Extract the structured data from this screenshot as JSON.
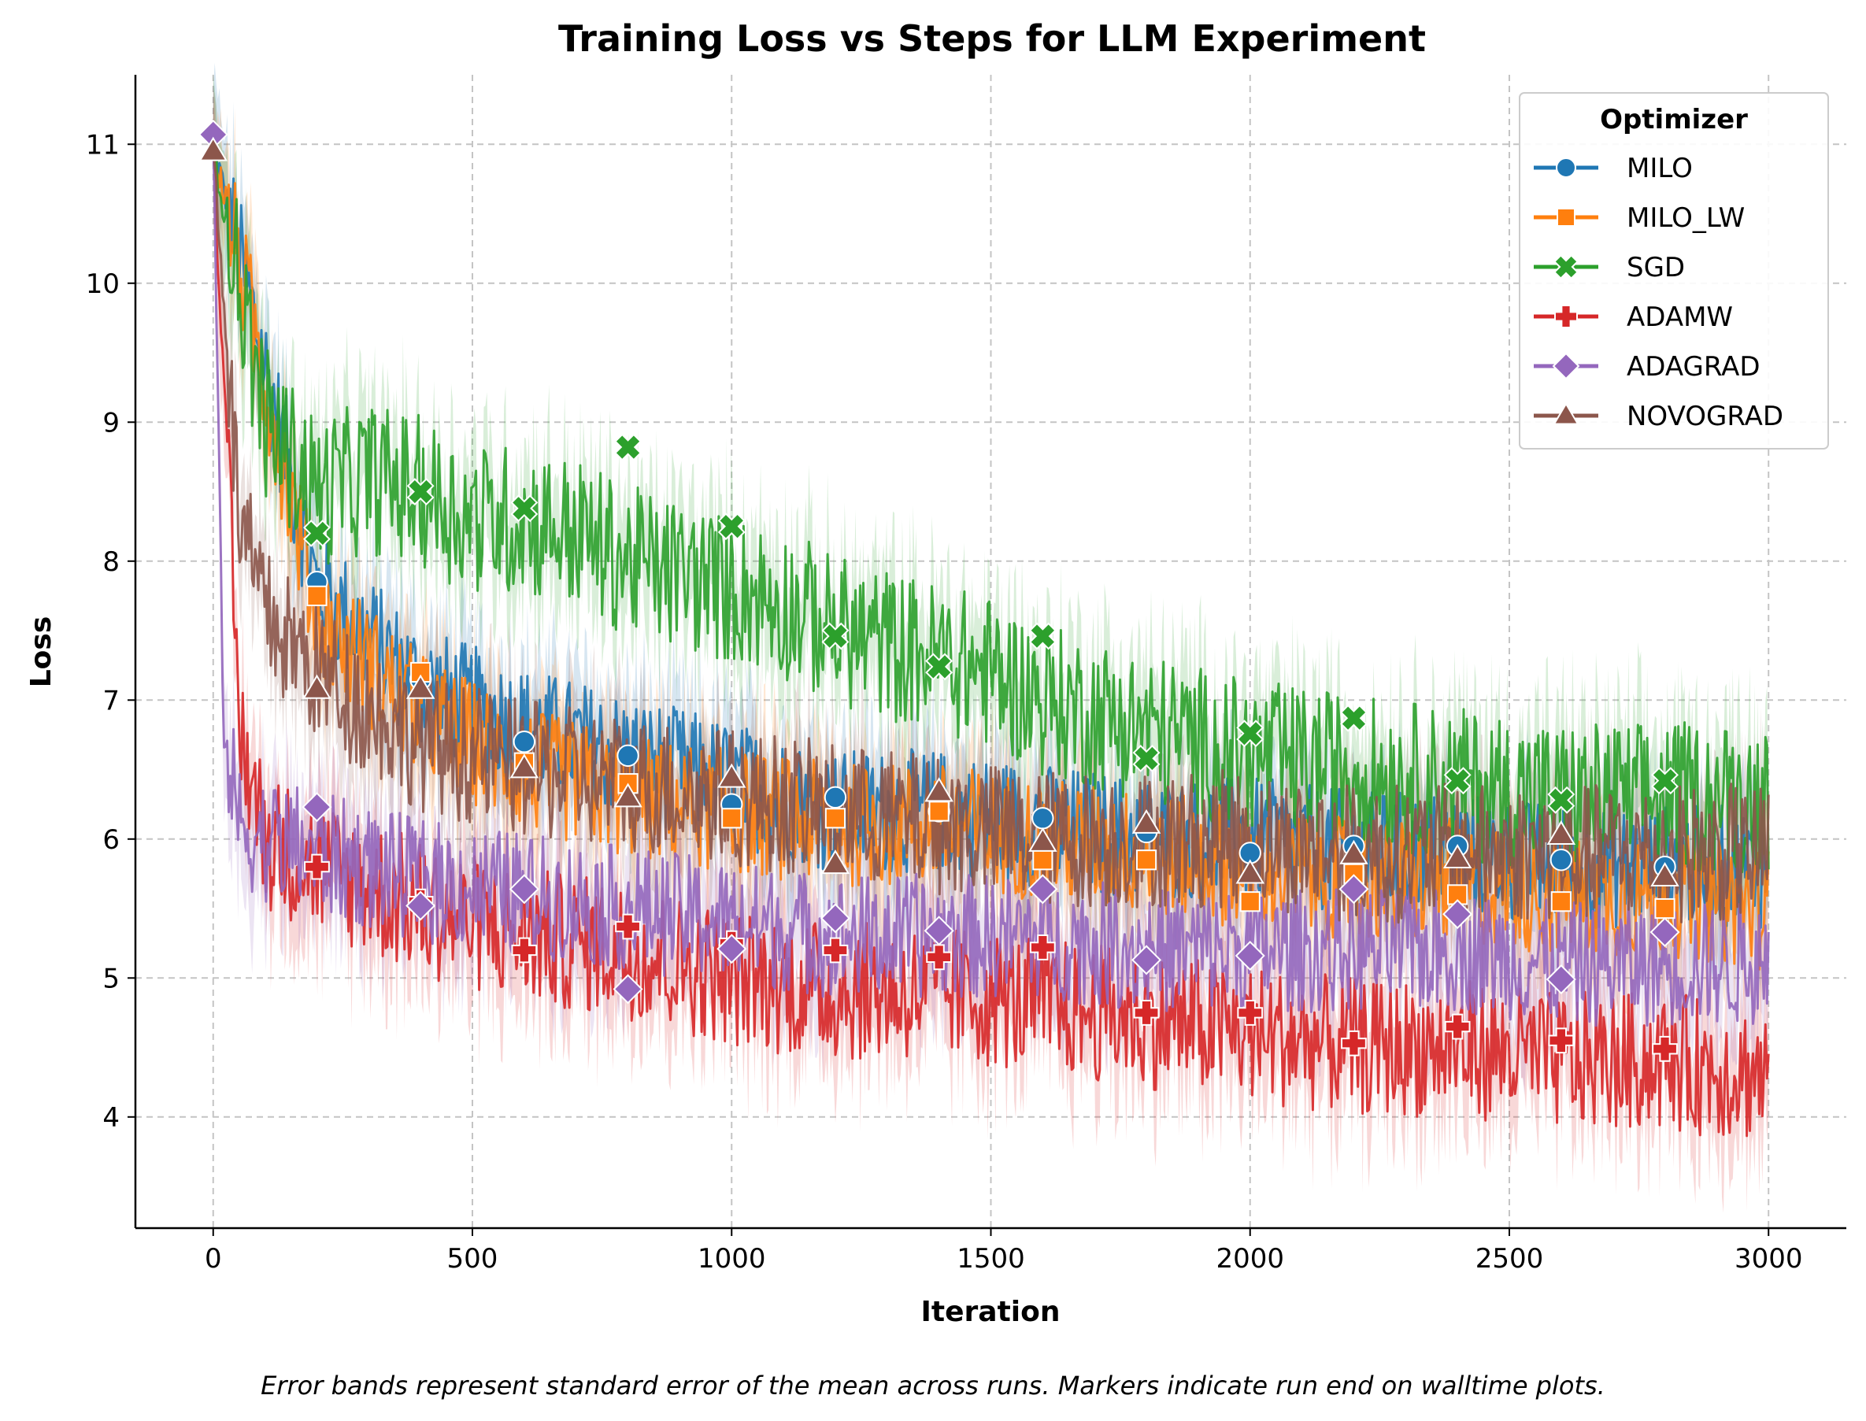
{
  "chart_data": {
    "type": "line",
    "title": "Training Loss vs Steps for LLM Experiment",
    "xlabel": "Iteration",
    "ylabel": "Loss",
    "xlim": [
      -150,
      3150
    ],
    "ylim": [
      3.2,
      11.5
    ],
    "xticks": [
      0,
      500,
      1000,
      1500,
      2000,
      2500,
      3000
    ],
    "yticks": [
      4,
      5,
      6,
      7,
      8,
      9,
      10,
      11
    ],
    "grid": true,
    "legend": {
      "title": "Optimizer",
      "placement": "top-right"
    },
    "caption": "Error bands represent standard error of the mean across runs. Markers indicate run end on walltime plots.",
    "series": [
      {
        "name": "MILO",
        "color": "#1f77b4",
        "marker": "circle",
        "x": [
          0,
          200,
          400,
          600,
          800,
          1000,
          1200,
          1400,
          1600,
          1800,
          2000,
          2200,
          2400,
          2600,
          2800,
          3000
        ],
        "values": [
          11.0,
          7.8,
          7.1,
          6.8,
          6.6,
          6.4,
          6.2,
          6.2,
          6.1,
          6.0,
          6.0,
          5.9,
          5.9,
          5.8,
          5.8,
          5.8
        ],
        "markers_x": [
          200,
          400,
          600,
          800,
          1000,
          1200,
          1400,
          1600,
          1800,
          2000,
          2200,
          2400,
          2600,
          2800
        ],
        "markers_y": [
          7.85,
          7.15,
          6.7,
          6.6,
          6.25,
          6.3,
          6.2,
          6.15,
          6.05,
          5.9,
          5.95,
          5.95,
          5.85,
          5.8
        ]
      },
      {
        "name": "MILO_LW",
        "color": "#ff7f0e",
        "marker": "square",
        "x": [
          0,
          200,
          400,
          600,
          800,
          1000,
          1200,
          1400,
          1600,
          1800,
          2000,
          2200,
          2400,
          2600,
          2800,
          3000
        ],
        "values": [
          11.0,
          7.6,
          6.9,
          6.5,
          6.3,
          6.2,
          6.1,
          6.1,
          6.0,
          5.9,
          5.8,
          5.7,
          5.7,
          5.6,
          5.6,
          5.5
        ],
        "markers_x": [
          200,
          400,
          600,
          800,
          1000,
          1200,
          1400,
          1600,
          1800,
          2000,
          2200,
          2400,
          2600,
          2800
        ],
        "markers_y": [
          7.75,
          7.2,
          6.55,
          6.4,
          6.15,
          6.15,
          6.2,
          5.85,
          5.85,
          5.55,
          5.75,
          5.6,
          5.55,
          5.5
        ]
      },
      {
        "name": "SGD",
        "color": "#2ca02c",
        "marker": "x",
        "x": [
          0,
          100,
          200,
          300,
          400,
          500,
          600,
          700,
          800,
          900,
          1000,
          1100,
          1200,
          1300,
          1400,
          1500,
          1600,
          1700,
          1800,
          1900,
          2000,
          2200,
          2400,
          2600,
          2800,
          3000
        ],
        "values": [
          11.0,
          9.0,
          8.5,
          8.6,
          8.5,
          8.3,
          8.3,
          8.2,
          8.0,
          7.9,
          7.8,
          7.7,
          7.5,
          7.4,
          7.3,
          7.2,
          7.0,
          6.9,
          6.8,
          6.7,
          6.6,
          6.5,
          6.4,
          6.3,
          6.3,
          6.3
        ],
        "markers_x": [
          200,
          400,
          600,
          800,
          1000,
          1200,
          1400,
          1600,
          1800,
          2000,
          2200,
          2400,
          2600,
          2800
        ],
        "markers_y": [
          8.2,
          8.5,
          8.38,
          8.82,
          8.25,
          7.46,
          7.24,
          7.46,
          6.58,
          6.76,
          6.87,
          6.42,
          6.28,
          6.42
        ]
      },
      {
        "name": "ADAMW",
        "color": "#d62728",
        "marker": "plus",
        "x": [
          0,
          50,
          100,
          200,
          400,
          600,
          800,
          1000,
          1200,
          1400,
          1600,
          1800,
          2000,
          2200,
          2400,
          2600,
          2800,
          3000
        ],
        "values": [
          11.0,
          6.8,
          6.0,
          5.8,
          5.5,
          5.3,
          5.2,
          5.0,
          4.9,
          4.9,
          4.8,
          4.7,
          4.6,
          4.5,
          4.5,
          4.4,
          4.4,
          4.3
        ],
        "markers_x": [
          200,
          400,
          600,
          800,
          1000,
          1200,
          1400,
          1600,
          1800,
          2000,
          2200,
          2400,
          2600,
          2800
        ],
        "markers_y": [
          5.8,
          5.55,
          5.2,
          5.37,
          5.25,
          5.2,
          5.15,
          5.22,
          4.75,
          4.75,
          4.53,
          4.65,
          4.55,
          4.49
        ]
      },
      {
        "name": "ADAGRAD",
        "color": "#9467bd",
        "marker": "diamond",
        "x": [
          0,
          20,
          50,
          100,
          200,
          400,
          600,
          800,
          1000,
          1200,
          1400,
          1600,
          1800,
          2000,
          2200,
          2400,
          2600,
          2800,
          3000
        ],
        "values": [
          11.1,
          6.8,
          6.1,
          6.0,
          5.9,
          5.7,
          5.6,
          5.5,
          5.4,
          5.3,
          5.3,
          5.3,
          5.2,
          5.2,
          5.2,
          5.2,
          5.1,
          5.1,
          5.1
        ],
        "markers_x": [
          0,
          200,
          400,
          600,
          800,
          1000,
          1200,
          1400,
          1600,
          1800,
          2000,
          2200,
          2400,
          2600,
          2800
        ],
        "markers_y": [
          11.07,
          6.23,
          5.52,
          5.64,
          4.92,
          5.21,
          5.43,
          5.34,
          5.64,
          5.13,
          5.16,
          5.64,
          5.46,
          4.99,
          5.33
        ]
      },
      {
        "name": "NOVOGRAD",
        "color": "#8c564b",
        "marker": "triangle",
        "x": [
          0,
          50,
          100,
          200,
          400,
          600,
          800,
          1000,
          1200,
          1400,
          1600,
          1800,
          2000,
          2200,
          2400,
          2600,
          2800,
          3000
        ],
        "values": [
          11.0,
          8.3,
          7.6,
          7.2,
          6.7,
          6.5,
          6.4,
          6.3,
          6.2,
          6.1,
          6.0,
          6.0,
          6.0,
          5.9,
          5.9,
          5.9,
          5.9,
          5.9
        ],
        "markers_x": [
          0,
          200,
          400,
          600,
          800,
          1000,
          1200,
          1400,
          1600,
          1800,
          2000,
          2200,
          2400,
          2600,
          2800
        ],
        "markers_y": [
          10.95,
          7.08,
          7.08,
          6.51,
          6.3,
          6.44,
          5.82,
          6.34,
          5.98,
          6.11,
          5.75,
          5.89,
          5.86,
          6.03,
          5.73
        ]
      }
    ]
  }
}
